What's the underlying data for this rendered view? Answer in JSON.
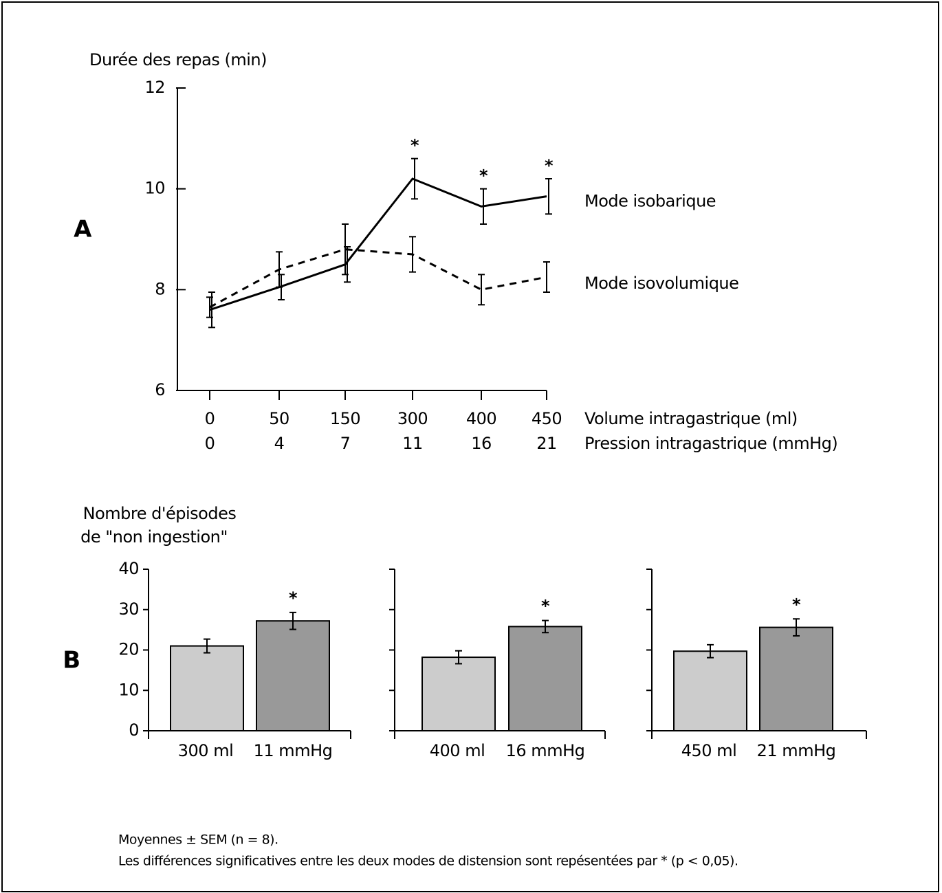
{
  "panel_labels": [
    "A",
    "B"
  ],
  "notes": [
    "Moyennes ± SEM (n = 8).",
    "Les différences significatives entre les deux modes de distension sont repésentées par * (p < 0,05)."
  ],
  "chart_data": [
    {
      "type": "line",
      "ylabel": "Durée des repas (min)",
      "categories": [
        "0",
        "50",
        "150",
        "300",
        "400",
        "450"
      ],
      "categories2": [
        "0",
        "4",
        "7",
        "11",
        "16",
        "21"
      ],
      "xlabel": "Volume intragastrique (ml)",
      "xlabel2": "Pression intragastrique (mmHg)",
      "ylim": [
        6,
        12
      ],
      "yticks": [
        6,
        8,
        10,
        12
      ],
      "series": [
        {
          "name": "Mode isobarique",
          "color": "#000000",
          "dash": false,
          "values": [
            7.6,
            8.05,
            8.5,
            10.2,
            9.65,
            9.85
          ],
          "errors": [
            0.35,
            0.25,
            0.35,
            0.4,
            0.35,
            0.35
          ],
          "markers": [
            null,
            null,
            null,
            "*",
            "*",
            "*"
          ]
        },
        {
          "name": "Mode isovolumique",
          "color": "#000000",
          "dash": true,
          "values": [
            7.65,
            8.4,
            8.8,
            8.7,
            8.0,
            8.25
          ],
          "errors": [
            0.2,
            0.35,
            0.5,
            0.35,
            0.3,
            0.3
          ],
          "markers": [
            null,
            null,
            null,
            null,
            null,
            null
          ]
        }
      ]
    },
    {
      "type": "bar",
      "ylabel": [
        "Nombre d'épisodes",
        "de \"non ingestion\""
      ],
      "show_ytick_labels": true,
      "categories": [
        "300 ml",
        "11 mmHg"
      ],
      "colors": [
        "#cccccc",
        "#999999"
      ],
      "values": [
        21,
        27.2
      ],
      "errors": [
        1.7,
        2.1
      ],
      "markers": [
        null,
        "*"
      ],
      "ylim": [
        0,
        40
      ],
      "yticks": [
        0,
        10,
        20,
        30,
        40
      ]
    },
    {
      "type": "bar",
      "show_ytick_labels": false,
      "categories": [
        "400 ml",
        "16 mmHg"
      ],
      "colors": [
        "#cccccc",
        "#999999"
      ],
      "values": [
        18.2,
        25.8
      ],
      "errors": [
        1.6,
        1.5
      ],
      "markers": [
        null,
        "*"
      ],
      "ylim": [
        0,
        40
      ],
      "yticks": [
        0,
        10,
        20,
        30,
        40
      ]
    },
    {
      "type": "bar",
      "show_ytick_labels": false,
      "categories": [
        "450 ml",
        "21 mmHg"
      ],
      "colors": [
        "#cccccc",
        "#999999"
      ],
      "values": [
        19.7,
        25.6
      ],
      "errors": [
        1.6,
        2.1
      ],
      "markers": [
        null,
        "*"
      ],
      "ylim": [
        0,
        40
      ],
      "yticks": [
        0,
        10,
        20,
        30,
        40
      ]
    }
  ]
}
